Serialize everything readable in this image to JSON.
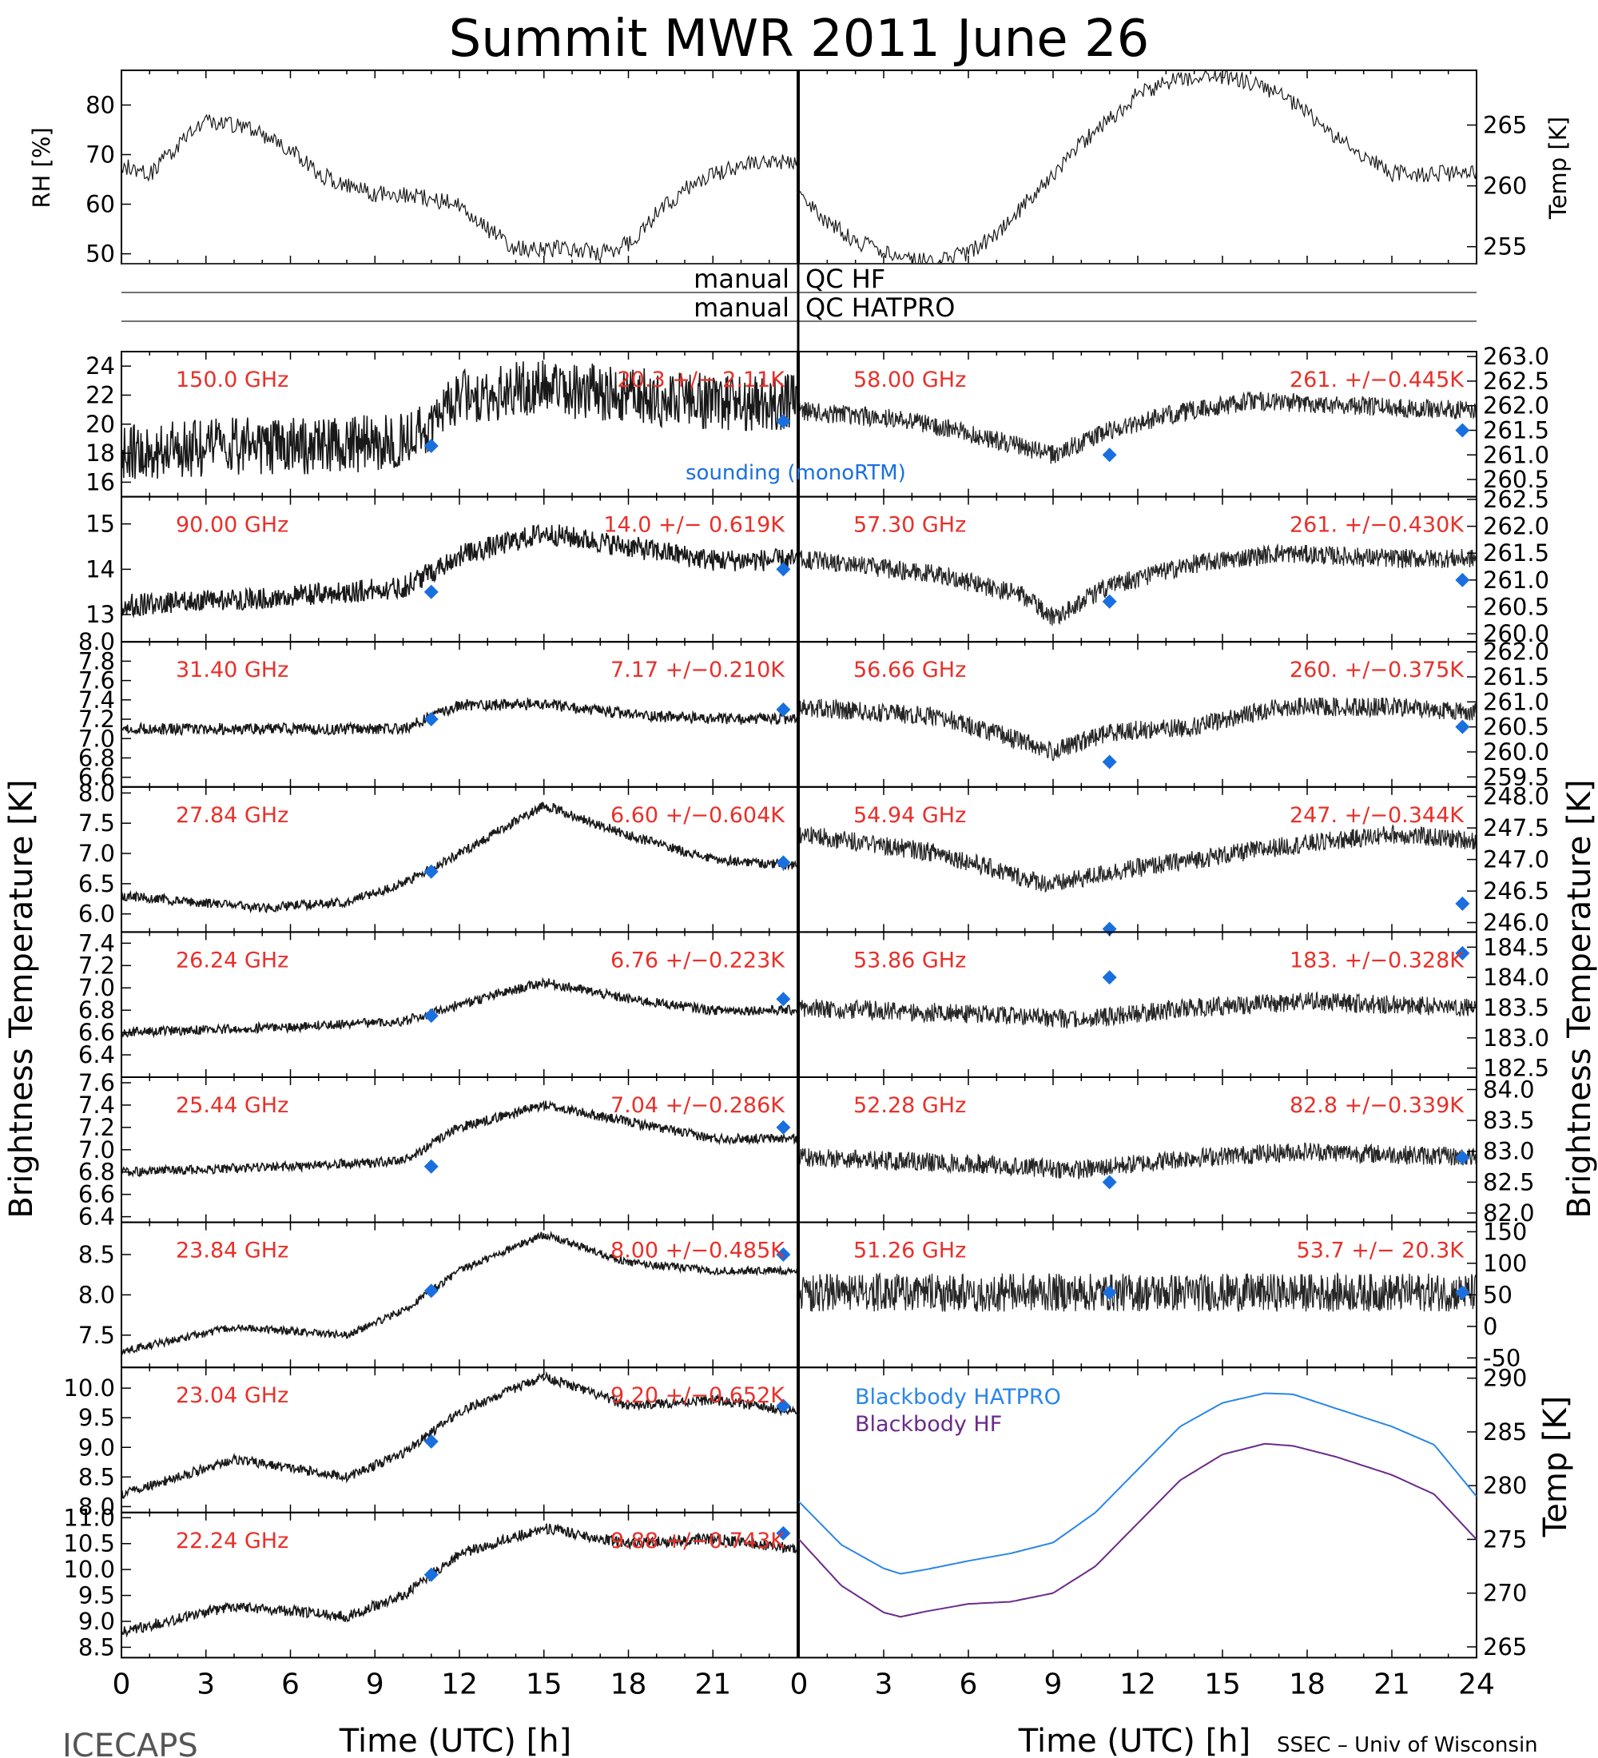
{
  "figure": {
    "title": "Summit MWR 2011 June 26",
    "left_footer": "ICECAPS",
    "right_footer": "SSEC – Univ of Wisconsin",
    "brightness_axis_label": "Brightness Temperature [K]",
    "x_axis_label": "Time (UTC) [h]",
    "colors": {
      "data": "#000000",
      "annotation": "#e8302a",
      "sounding": "#1a6fe0",
      "bb_hatpro": "#2a86e8",
      "bb_hf": "#6a2a8a"
    }
  },
  "chart_data": [
    {
      "id": "rh",
      "type": "line",
      "ylabel": "RH [%]",
      "ylim": [
        48,
        87
      ],
      "yticks": [
        50,
        60,
        70,
        80
      ],
      "xlim": [
        0,
        24
      ],
      "keypoints": [
        [
          0,
          68
        ],
        [
          1,
          66
        ],
        [
          2,
          72
        ],
        [
          3,
          77
        ],
        [
          4,
          76
        ],
        [
          5,
          74
        ],
        [
          6,
          71
        ],
        [
          7,
          66
        ],
        [
          8,
          64
        ],
        [
          9,
          62
        ],
        [
          10,
          62
        ],
        [
          11,
          61
        ],
        [
          12,
          60
        ],
        [
          13,
          55
        ],
        [
          14,
          51
        ],
        [
          15,
          51
        ],
        [
          16,
          51
        ],
        [
          17,
          50
        ],
        [
          18,
          52
        ],
        [
          19,
          58
        ],
        [
          20,
          63
        ],
        [
          21,
          66
        ],
        [
          22,
          68
        ],
        [
          23,
          68
        ],
        [
          24,
          69
        ]
      ]
    },
    {
      "id": "temp",
      "type": "line",
      "ylabel": "Temp [K]",
      "ylim": [
        253.6,
        269.5
      ],
      "yticks": [
        255,
        260,
        265
      ],
      "xlim": [
        0,
        24
      ],
      "keypoints": [
        [
          0,
          259.5
        ],
        [
          1,
          257
        ],
        [
          2,
          255.5
        ],
        [
          3,
          254.5
        ],
        [
          4,
          253.8
        ],
        [
          5,
          253.8
        ],
        [
          6,
          254.5
        ],
        [
          7,
          256
        ],
        [
          8,
          258.5
        ],
        [
          9,
          261
        ],
        [
          10,
          263.5
        ],
        [
          11,
          265.5
        ],
        [
          12,
          267.5
        ],
        [
          13,
          268.5
        ],
        [
          14,
          269
        ],
        [
          15,
          269
        ],
        [
          16,
          268.5
        ],
        [
          17,
          267.5
        ],
        [
          18,
          266
        ],
        [
          19,
          264
        ],
        [
          20,
          262.5
        ],
        [
          21,
          261
        ]
      ]
    },
    {
      "id": "qc_hf",
      "type": "table",
      "label": "manual QC HF"
    },
    {
      "id": "qc_hatpro",
      "type": "table",
      "label": "manual QC HATPRO"
    },
    {
      "id": "ch150",
      "type": "line",
      "label": "150.0 GHz",
      "stat": "20.3 +/− 2.11K",
      "ylim": [
        15,
        25
      ],
      "yticks": [
        16,
        18,
        20,
        22,
        24
      ],
      "noise": 0.9,
      "sounding": [
        [
          11,
          18.5
        ],
        [
          23.5,
          20.2
        ]
      ],
      "keypoints": [
        [
          0,
          18
        ],
        [
          4,
          18.5
        ],
        [
          8,
          18.5
        ],
        [
          10,
          19
        ],
        [
          11,
          20
        ],
        [
          12,
          22
        ],
        [
          15,
          22.5
        ],
        [
          18,
          22
        ],
        [
          21,
          21.5
        ],
        [
          24,
          21.5
        ]
      ]
    },
    {
      "id": "ch90",
      "type": "line",
      "label": "90.00 GHz",
      "stat": "14.0 +/− 0.619K",
      "ylim": [
        12.4,
        15.6
      ],
      "yticks": [
        13,
        14,
        15
      ],
      "noise": 0.35,
      "sounding": [
        [
          11,
          13.5
        ],
        [
          23.5,
          14.0
        ]
      ],
      "keypoints": [
        [
          0,
          13.2
        ],
        [
          6,
          13.4
        ],
        [
          10,
          13.6
        ],
        [
          12,
          14.3
        ],
        [
          15,
          14.8
        ],
        [
          18,
          14.5
        ],
        [
          21,
          14.2
        ],
        [
          24,
          14.2
        ]
      ]
    },
    {
      "id": "ch3140",
      "type": "line",
      "label": "31.40 GHz",
      "stat": "7.17 +/−0.210K",
      "ylim": [
        6.5,
        8.0
      ],
      "yticks": [
        6.6,
        6.8,
        7.0,
        7.2,
        7.4,
        7.6,
        7.8,
        8.0
      ],
      "noise": 0.18,
      "sounding": [
        [
          11,
          7.2
        ],
        [
          23.5,
          7.3
        ]
      ],
      "keypoints": [
        [
          0,
          7.1
        ],
        [
          6,
          7.1
        ],
        [
          10,
          7.1
        ],
        [
          12,
          7.35
        ],
        [
          15,
          7.35
        ],
        [
          18,
          7.25
        ],
        [
          21,
          7.2
        ],
        [
          24,
          7.2
        ]
      ]
    },
    {
      "id": "ch2784",
      "type": "line",
      "label": "27.84 GHz",
      "stat": "6.60 +/−0.604K",
      "ylim": [
        5.7,
        8.1
      ],
      "yticks": [
        6.0,
        6.5,
        7.0,
        7.5,
        8.0
      ],
      "noise": 0.15,
      "sounding": [
        [
          11,
          6.7
        ],
        [
          23.5,
          6.85
        ]
      ],
      "keypoints": [
        [
          0,
          6.3
        ],
        [
          5,
          6.1
        ],
        [
          8,
          6.2
        ],
        [
          10,
          6.5
        ],
        [
          12,
          7.0
        ],
        [
          15,
          7.8
        ],
        [
          18,
          7.3
        ],
        [
          21,
          6.9
        ],
        [
          24,
          6.8
        ]
      ]
    },
    {
      "id": "ch2624",
      "type": "line",
      "label": "26.24 GHz",
      "stat": "6.76 +/−0.223K",
      "ylim": [
        6.2,
        7.5
      ],
      "yticks": [
        6.4,
        6.6,
        6.8,
        7.0,
        7.2,
        7.4
      ],
      "noise": 0.15,
      "sounding": [
        [
          11,
          6.75
        ],
        [
          23.5,
          6.9
        ]
      ],
      "keypoints": [
        [
          0,
          6.6
        ],
        [
          6,
          6.65
        ],
        [
          10,
          6.7
        ],
        [
          12,
          6.85
        ],
        [
          15,
          7.05
        ],
        [
          18,
          6.9
        ],
        [
          21,
          6.8
        ],
        [
          24,
          6.8
        ]
      ]
    },
    {
      "id": "ch2544",
      "type": "line",
      "label": "25.44 GHz",
      "stat": "7.04 +/−0.286K",
      "ylim": [
        6.35,
        7.65
      ],
      "yticks": [
        6.4,
        6.6,
        6.8,
        7.0,
        7.2,
        7.4,
        7.6
      ],
      "noise": 0.15,
      "sounding": [
        [
          11,
          6.85
        ],
        [
          23.5,
          7.2
        ]
      ],
      "keypoints": [
        [
          0,
          6.8
        ],
        [
          6,
          6.85
        ],
        [
          10,
          6.9
        ],
        [
          12,
          7.2
        ],
        [
          15,
          7.4
        ],
        [
          18,
          7.25
        ],
        [
          21,
          7.1
        ],
        [
          24,
          7.1
        ]
      ]
    },
    {
      "id": "ch2384",
      "type": "line",
      "label": "23.84 GHz",
      "stat": "8.00 +/−0.485K",
      "ylim": [
        7.1,
        8.9
      ],
      "yticks": [
        7.5,
        8.0,
        8.5
      ],
      "noise": 0.12,
      "sounding": [
        [
          11,
          8.05
        ],
        [
          23.5,
          8.5
        ]
      ],
      "keypoints": [
        [
          0,
          7.3
        ],
        [
          4,
          7.6
        ],
        [
          8,
          7.5
        ],
        [
          10,
          7.8
        ],
        [
          12,
          8.3
        ],
        [
          15,
          8.75
        ],
        [
          18,
          8.4
        ],
        [
          21,
          8.3
        ],
        [
          24,
          8.3
        ]
      ]
    },
    {
      "id": "ch2304",
      "type": "line",
      "label": "23.04 GHz",
      "stat": "9.20 +/−0.652K",
      "ylim": [
        7.9,
        10.35
      ],
      "yticks": [
        8.0,
        8.5,
        9.0,
        9.5,
        10.0
      ],
      "noise": 0.15,
      "sounding": [
        [
          11,
          9.1
        ],
        [
          23.5,
          9.7
        ]
      ],
      "keypoints": [
        [
          0,
          8.2
        ],
        [
          4,
          8.8
        ],
        [
          8,
          8.5
        ],
        [
          10,
          8.9
        ],
        [
          12,
          9.6
        ],
        [
          15,
          10.2
        ],
        [
          18,
          9.7
        ],
        [
          21,
          9.8
        ],
        [
          24,
          9.6
        ]
      ]
    },
    {
      "id": "ch2224",
      "type": "line",
      "label": "22.24 GHz",
      "stat": "9.88 +/−0.743K",
      "ylim": [
        8.3,
        11.1
      ],
      "yticks": [
        8.5,
        9.0,
        9.5,
        10.0,
        10.5,
        11.0
      ],
      "noise": 0.17,
      "sounding": [
        [
          11,
          9.9
        ],
        [
          23.5,
          10.7
        ]
      ],
      "keypoints": [
        [
          0,
          8.8
        ],
        [
          4,
          9.3
        ],
        [
          8,
          9.1
        ],
        [
          10,
          9.5
        ],
        [
          12,
          10.3
        ],
        [
          15,
          10.8
        ],
        [
          18,
          10.5
        ],
        [
          21,
          10.6
        ],
        [
          24,
          10.4
        ]
      ]
    },
    {
      "id": "ch5800",
      "type": "line",
      "label": "58.00 GHz",
      "stat": "261. +/−0.445K",
      "ylim": [
        260.15,
        263.1
      ],
      "yticks": [
        260.5,
        261.0,
        261.5,
        262.0,
        262.5,
        263.0
      ],
      "noise": 0.3,
      "sounding": [
        [
          11,
          261.0
        ],
        [
          23.5,
          261.5
        ]
      ],
      "keypoints": [
        [
          0,
          261.9
        ],
        [
          4,
          261.7
        ],
        [
          7,
          261.3
        ],
        [
          9,
          261.0
        ],
        [
          11,
          261.5
        ],
        [
          13,
          261.8
        ],
        [
          16,
          262.1
        ],
        [
          20,
          262.0
        ],
        [
          24,
          261.9
        ]
      ]
    },
    {
      "id": "ch5730",
      "type": "line",
      "label": "57.30 GHz",
      "stat": "261. +/−0.430K",
      "ylim": [
        259.85,
        262.55
      ],
      "yticks": [
        260.0,
        260.5,
        261.0,
        261.5,
        262.0,
        262.5
      ],
      "noise": 0.3,
      "sounding": [
        [
          11,
          260.6
        ],
        [
          23.5,
          261.0
        ]
      ],
      "keypoints": [
        [
          0,
          261.4
        ],
        [
          5,
          261.1
        ],
        [
          8,
          260.7
        ],
        [
          9,
          260.3
        ],
        [
          11,
          260.9
        ],
        [
          14,
          261.3
        ],
        [
          17,
          261.5
        ],
        [
          21,
          261.4
        ],
        [
          24,
          261.4
        ]
      ]
    },
    {
      "id": "ch5666",
      "type": "line",
      "label": "56.66 GHz",
      "stat": "260. +/−0.375K",
      "ylim": [
        259.3,
        262.2
      ],
      "yticks": [
        259.5,
        260.0,
        260.5,
        261.0,
        261.5,
        262.0
      ],
      "noise": 0.3,
      "sounding": [
        [
          11,
          259.8
        ],
        [
          23.5,
          260.5
        ]
      ],
      "keypoints": [
        [
          0,
          260.9
        ],
        [
          5,
          260.7
        ],
        [
          8,
          260.2
        ],
        [
          9,
          260.0
        ],
        [
          11,
          260.4
        ],
        [
          14,
          260.5
        ],
        [
          17,
          260.9
        ],
        [
          21,
          260.9
        ],
        [
          24,
          260.8
        ]
      ]
    },
    {
      "id": "ch5494",
      "type": "line",
      "label": "54.94 GHz",
      "stat": "247. +/−0.344K",
      "ylim": [
        245.85,
        248.15
      ],
      "yticks": [
        246.0,
        246.5,
        247.0,
        247.5,
        248.0
      ],
      "noise": 0.3,
      "sounding": [
        [
          11,
          245.9
        ],
        [
          23.5,
          246.3
        ]
      ],
      "keypoints": [
        [
          0,
          247.4
        ],
        [
          5,
          247.1
        ],
        [
          8,
          246.7
        ],
        [
          9,
          246.6
        ],
        [
          11,
          246.8
        ],
        [
          14,
          247.0
        ],
        [
          17,
          247.2
        ],
        [
          21,
          247.4
        ],
        [
          24,
          247.3
        ]
      ]
    },
    {
      "id": "ch5386",
      "type": "line",
      "label": "53.86 GHz",
      "stat": "183. +/−0.328K",
      "ylim": [
        182.35,
        184.75
      ],
      "yticks": [
        182.5,
        183.0,
        183.5,
        184.0,
        184.5
      ],
      "noise": 0.3,
      "sounding": [
        [
          11,
          184.0
        ],
        [
          23.5,
          184.4
        ]
      ],
      "keypoints": [
        [
          0,
          183.5
        ],
        [
          6,
          183.4
        ],
        [
          10,
          183.3
        ],
        [
          14,
          183.5
        ],
        [
          18,
          183.6
        ],
        [
          24,
          183.5
        ]
      ]
    },
    {
      "id": "ch5228",
      "type": "line",
      "label": "52.28 GHz",
      "stat": "82.8 +/−0.339K",
      "ylim": [
        81.85,
        84.2
      ],
      "yticks": [
        82.0,
        82.5,
        83.0,
        83.5,
        84.0
      ],
      "noise": 0.3,
      "sounding": [
        [
          11,
          82.5
        ],
        [
          23.5,
          82.9
        ]
      ],
      "keypoints": [
        [
          0,
          82.9
        ],
        [
          6,
          82.8
        ],
        [
          10,
          82.7
        ],
        [
          14,
          82.9
        ],
        [
          18,
          83.0
        ],
        [
          24,
          82.9
        ]
      ]
    },
    {
      "id": "ch5126",
      "type": "line",
      "label": "51.26 GHz",
      "stat": "53.7 +/− 20.3K",
      "ylim": [
        -65,
        165
      ],
      "yticks": [
        -50,
        0,
        50,
        100,
        150
      ],
      "noise": 0.6,
      "sounding": [
        [
          11,
          53.7
        ],
        [
          23.5,
          53.7
        ]
      ],
      "keypoints": [
        [
          0,
          53.7
        ],
        [
          24,
          53.7
        ]
      ]
    },
    {
      "id": "blackbody",
      "type": "line",
      "ylabel": "Temp [K]",
      "ylim": [
        264,
        291
      ],
      "yticks": [
        265,
        270,
        275,
        280,
        285,
        290
      ],
      "xlim": [
        0,
        24
      ],
      "series": [
        {
          "name": "Blackbody HATPRO",
          "keypoints": [
            [
              0,
              278.5
            ],
            [
              1.5,
              274.5
            ],
            [
              3,
              272.3
            ],
            [
              3.6,
              271.8
            ],
            [
              4.5,
              272.2
            ],
            [
              6,
              273.0
            ],
            [
              7.5,
              273.7
            ],
            [
              9,
              274.7
            ],
            [
              10.5,
              277.5
            ],
            [
              12,
              281.5
            ],
            [
              13.5,
              285.5
            ],
            [
              15,
              287.7
            ],
            [
              16.5,
              288.6
            ],
            [
              17.5,
              288.5
            ],
            [
              19,
              287.2
            ],
            [
              21,
              285.5
            ],
            [
              22.5,
              283.8
            ],
            [
              24,
              279.0
            ]
          ]
        },
        {
          "name": "Blackbody HF",
          "keypoints": [
            [
              0,
              275.0
            ],
            [
              1.5,
              270.7
            ],
            [
              3,
              268.2
            ],
            [
              3.6,
              267.8
            ],
            [
              4.5,
              268.3
            ],
            [
              6,
              269.0
            ],
            [
              7.5,
              269.2
            ],
            [
              9,
              270.0
            ],
            [
              10.5,
              272.5
            ],
            [
              12,
              276.5
            ],
            [
              13.5,
              280.5
            ],
            [
              15,
              282.9
            ],
            [
              16.5,
              283.9
            ],
            [
              17.5,
              283.7
            ],
            [
              19,
              282.7
            ],
            [
              21,
              281.0
            ],
            [
              22.5,
              279.2
            ],
            [
              24,
              275.0
            ]
          ]
        }
      ]
    }
  ],
  "x_ticks": [
    "0",
    "3",
    "6",
    "9",
    "12",
    "15",
    "18",
    "21",
    "24"
  ]
}
